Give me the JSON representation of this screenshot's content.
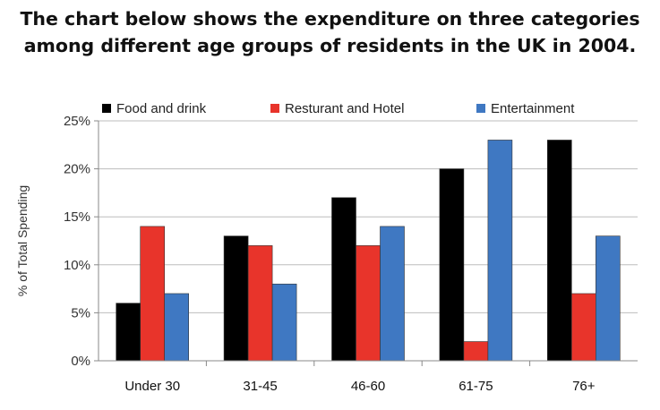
{
  "title_lines": [
    "The chart below shows the expenditure on three categories",
    "among different age groups of residents in the UK in 2004."
  ],
  "chart_data": {
    "type": "bar",
    "title": "The chart below shows the expenditure on three categories among different age groups of residents in the UK in 2004.",
    "categories": [
      "Under 30",
      "31-45",
      "46-60",
      "61-75",
      "76+"
    ],
    "series": [
      {
        "name": "Food and drink",
        "color": "#000000",
        "values": [
          6,
          13,
          17,
          20,
          23
        ]
      },
      {
        "name": "Resturant and Hotel",
        "color": "#e8342b",
        "values": [
          14,
          12,
          12,
          2,
          7
        ]
      },
      {
        "name": "Entertainment",
        "color": "#3f78c2",
        "values": [
          7,
          8,
          14,
          23,
          13
        ]
      }
    ],
    "xlabel": "",
    "ylabel": "% of Total Spending",
    "ylim": [
      0,
      25
    ],
    "yticks": [
      0,
      5,
      10,
      15,
      20,
      25
    ],
    "ytick_labels": [
      "0%",
      "5%",
      "10%",
      "15%",
      "20%",
      "25%"
    ],
    "grid": "horizontal",
    "legend": "top"
  }
}
